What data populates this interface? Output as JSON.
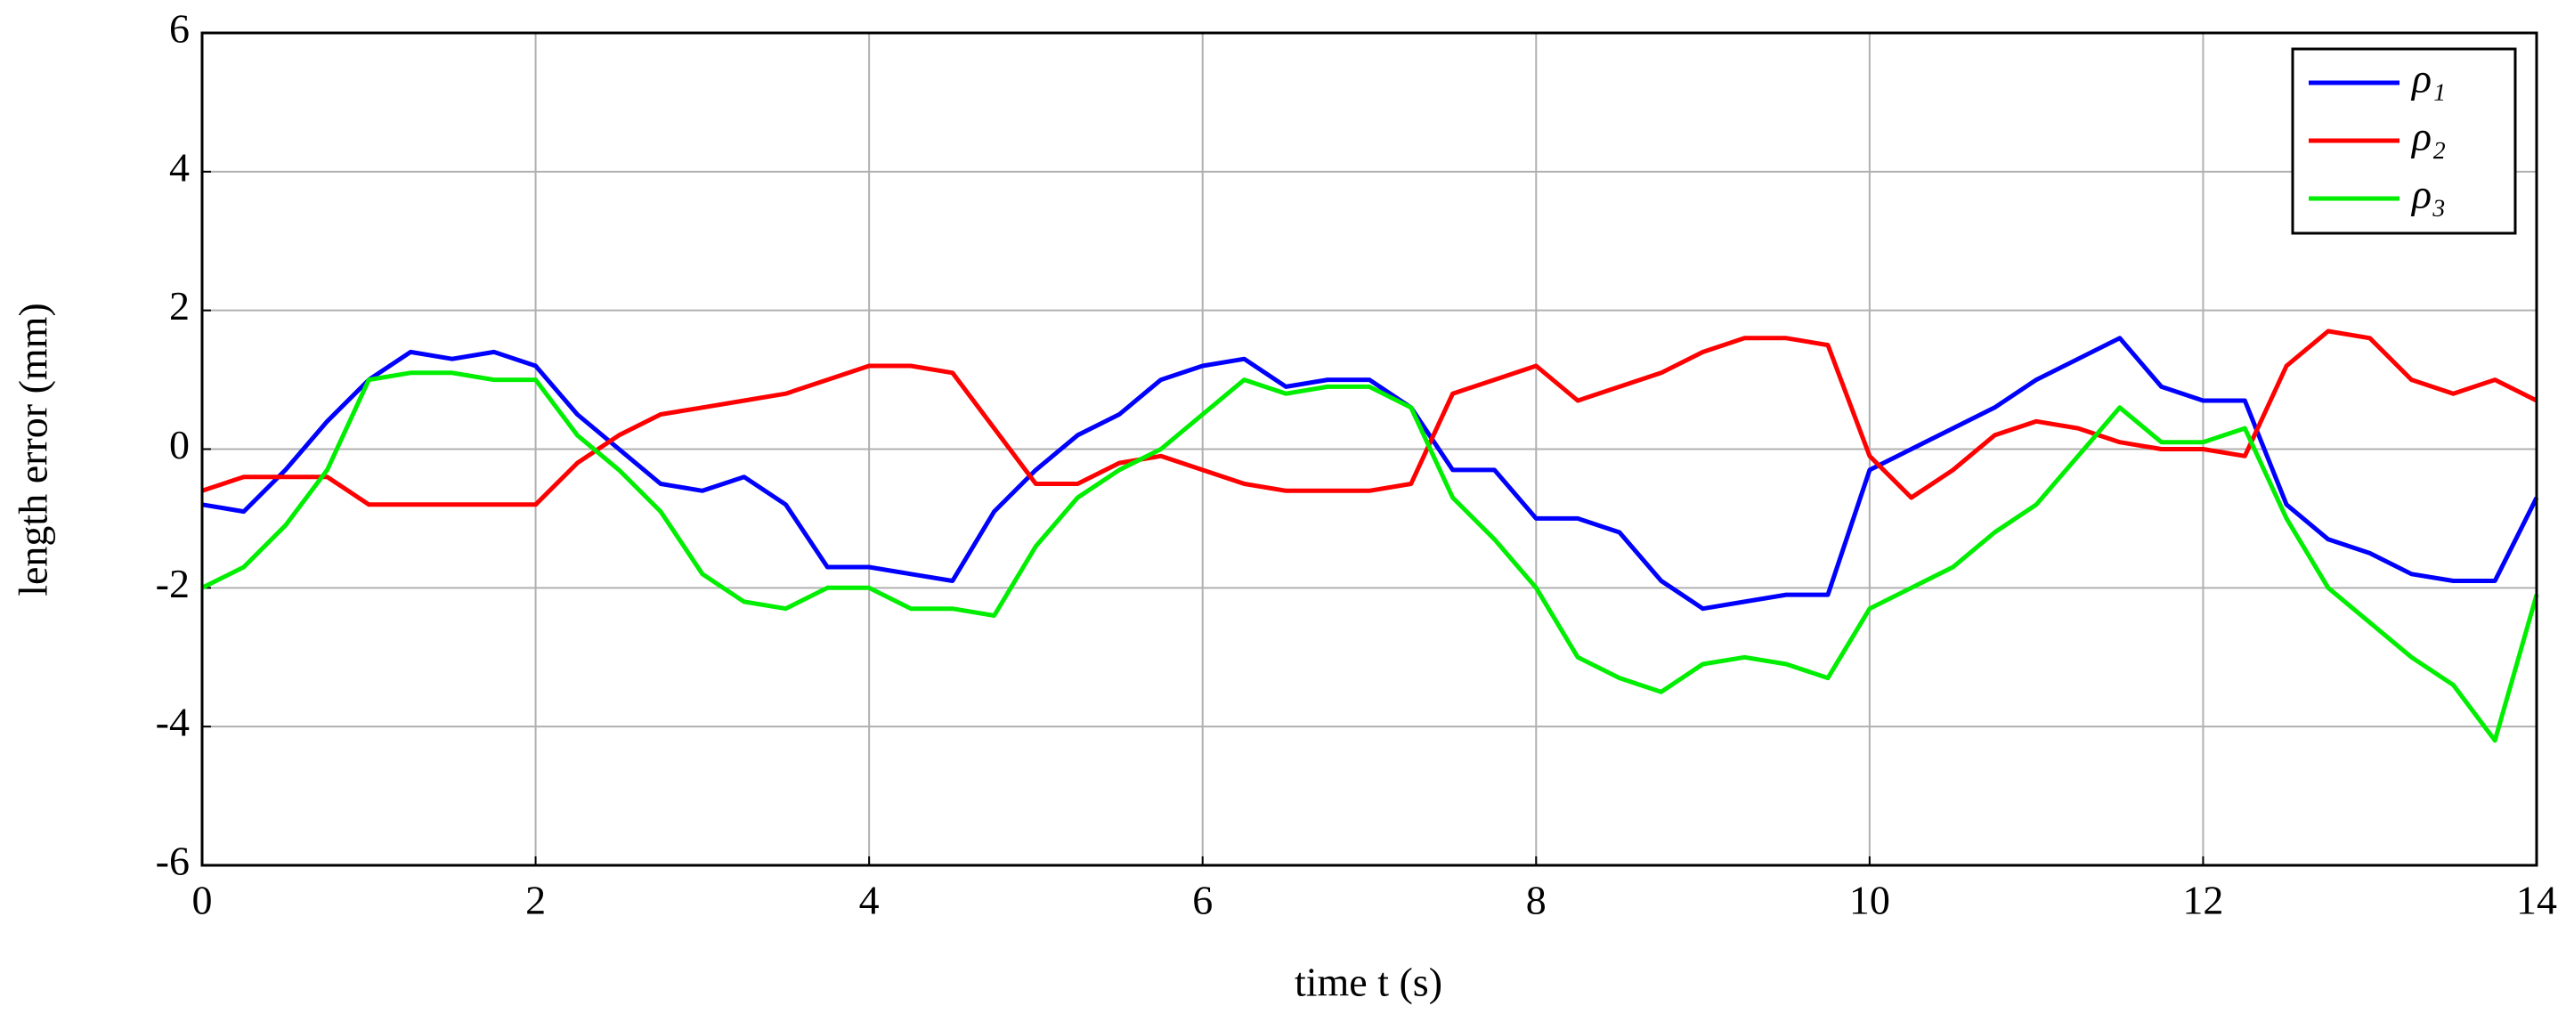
{
  "chart_data": {
    "type": "line",
    "xlabel": "time t (s)",
    "ylabel": "length error (mm)",
    "x": [
      0,
      0.25,
      0.5,
      0.75,
      1,
      1.25,
      1.5,
      1.75,
      2,
      2.25,
      2.5,
      2.75,
      3,
      3.25,
      3.5,
      3.75,
      4,
      4.25,
      4.5,
      4.75,
      5,
      5.25,
      5.5,
      5.75,
      6,
      6.25,
      6.5,
      6.75,
      7,
      7.25,
      7.5,
      7.75,
      8,
      8.25,
      8.5,
      8.75,
      9,
      9.25,
      9.5,
      9.75,
      10,
      10.25,
      10.5,
      10.75,
      11,
      11.25,
      11.5,
      11.75,
      12,
      12.25,
      12.5,
      12.75,
      13,
      13.25,
      13.5,
      13.75,
      14
    ],
    "series": [
      {
        "name": "ρ₁",
        "color": "#0000ff",
        "values": [
          -0.8,
          -0.9,
          -0.3,
          0.4,
          1.0,
          1.4,
          1.3,
          1.4,
          1.2,
          0.5,
          0.0,
          -0.5,
          -0.6,
          -0.4,
          -0.8,
          -1.7,
          -1.7,
          -1.8,
          -1.9,
          -0.9,
          -0.3,
          0.2,
          0.5,
          1.0,
          1.2,
          1.3,
          0.9,
          1.0,
          1.0,
          0.6,
          -0.3,
          -0.3,
          -1.0,
          -1.0,
          -1.2,
          -1.9,
          -2.3,
          -2.2,
          -2.1,
          -2.1,
          -0.3,
          0.0,
          0.3,
          0.6,
          1.0,
          1.3,
          1.6,
          0.9,
          0.7,
          0.7,
          -0.8,
          -1.3,
          -1.5,
          -1.8,
          -1.9,
          -1.9,
          -0.7
        ]
      },
      {
        "name": "ρ₂",
        "color": "#ff0000",
        "values": [
          -0.6,
          -0.4,
          -0.4,
          -0.4,
          -0.8,
          -0.8,
          -0.8,
          -0.8,
          -0.8,
          -0.2,
          0.2,
          0.5,
          0.6,
          0.7,
          0.8,
          1.0,
          1.2,
          1.2,
          1.1,
          0.3,
          -0.5,
          -0.5,
          -0.2,
          -0.1,
          -0.3,
          -0.5,
          -0.6,
          -0.6,
          -0.6,
          -0.5,
          0.8,
          1.0,
          1.2,
          0.7,
          0.9,
          1.1,
          1.4,
          1.6,
          1.6,
          1.5,
          -0.1,
          -0.7,
          -0.3,
          0.2,
          0.4,
          0.3,
          0.1,
          0.0,
          0.0,
          -0.1,
          1.2,
          1.7,
          1.6,
          1.0,
          0.8,
          1.0,
          0.7
        ]
      },
      {
        "name": "ρ₃",
        "color": "#00ee00",
        "values": [
          -2.0,
          -1.7,
          -1.1,
          -0.3,
          1.0,
          1.1,
          1.1,
          1.0,
          1.0,
          0.2,
          -0.3,
          -0.9,
          -1.8,
          -2.2,
          -2.3,
          -2.0,
          -2.0,
          -2.3,
          -2.3,
          -2.4,
          -1.4,
          -0.7,
          -0.3,
          0.0,
          0.5,
          1.0,
          0.8,
          0.9,
          0.9,
          0.6,
          -0.7,
          -1.3,
          -2.0,
          -3.0,
          -3.3,
          -3.5,
          -3.1,
          -3.0,
          -3.1,
          -3.3,
          -2.3,
          -2.0,
          -1.7,
          -1.2,
          -0.8,
          -0.1,
          0.6,
          0.1,
          0.1,
          0.3,
          -1.0,
          -2.0,
          -2.5,
          -3.0,
          -3.4,
          -4.2,
          -2.1
        ]
      }
    ],
    "xlim": [
      0,
      14
    ],
    "ylim": [
      -6,
      6
    ],
    "xticks": [
      0,
      2,
      4,
      6,
      8,
      10,
      12,
      14
    ],
    "yticks": [
      -6,
      -4,
      -2,
      0,
      2,
      4,
      6
    ],
    "grid": true,
    "legend": "upper right"
  }
}
